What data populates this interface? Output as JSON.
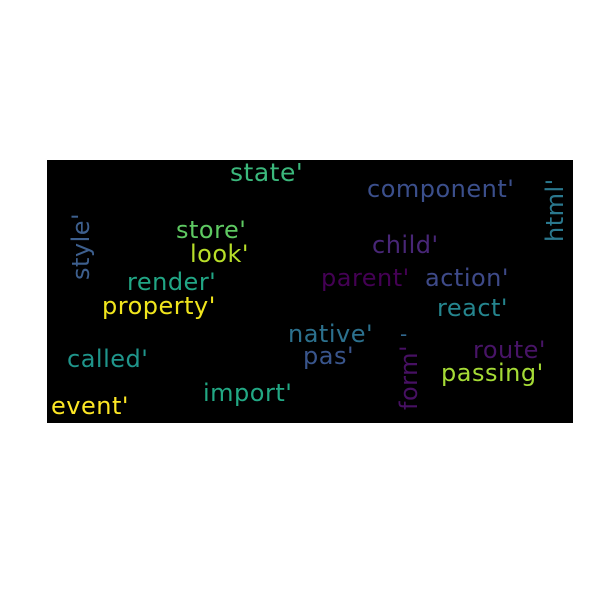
{
  "cloud": {
    "background": "#000000",
    "words": [
      {
        "id": "state",
        "text": "state'",
        "color": "#3bb87c"
      },
      {
        "id": "component",
        "text": "component'",
        "color": "#3b4f8c"
      },
      {
        "id": "html",
        "text": "html'",
        "color": "#2a788e"
      },
      {
        "id": "style",
        "text": "style'",
        "color": "#3d5f8e"
      },
      {
        "id": "store",
        "text": "store'",
        "color": "#5ec962"
      },
      {
        "id": "look",
        "text": "look'",
        "color": "#b8de29"
      },
      {
        "id": "child",
        "text": "child'",
        "color": "#482677"
      },
      {
        "id": "render",
        "text": "render'",
        "color": "#21a685"
      },
      {
        "id": "parent",
        "text": "parent'",
        "color": "#440154"
      },
      {
        "id": "action",
        "text": "action'",
        "color": "#3e4a89"
      },
      {
        "id": "property",
        "text": "property'",
        "color": "#f0e51d"
      },
      {
        "id": "react",
        "text": "react'",
        "color": "#25858e"
      },
      {
        "id": "native",
        "text": "native'",
        "color": "#2c718e"
      },
      {
        "id": "dash",
        "text": "-",
        "color": "#31688e"
      },
      {
        "id": "called",
        "text": "called'",
        "color": "#1f958b"
      },
      {
        "id": "pas",
        "text": "pas'",
        "color": "#39558c"
      },
      {
        "id": "form",
        "text": "form'",
        "color": "#471063"
      },
      {
        "id": "route",
        "text": "route'",
        "color": "#481467"
      },
      {
        "id": "passing",
        "text": "passing'",
        "color": "#a5db36"
      },
      {
        "id": "import",
        "text": "import'",
        "color": "#22a884"
      },
      {
        "id": "event",
        "text": "event'",
        "color": "#fde725"
      }
    ]
  }
}
